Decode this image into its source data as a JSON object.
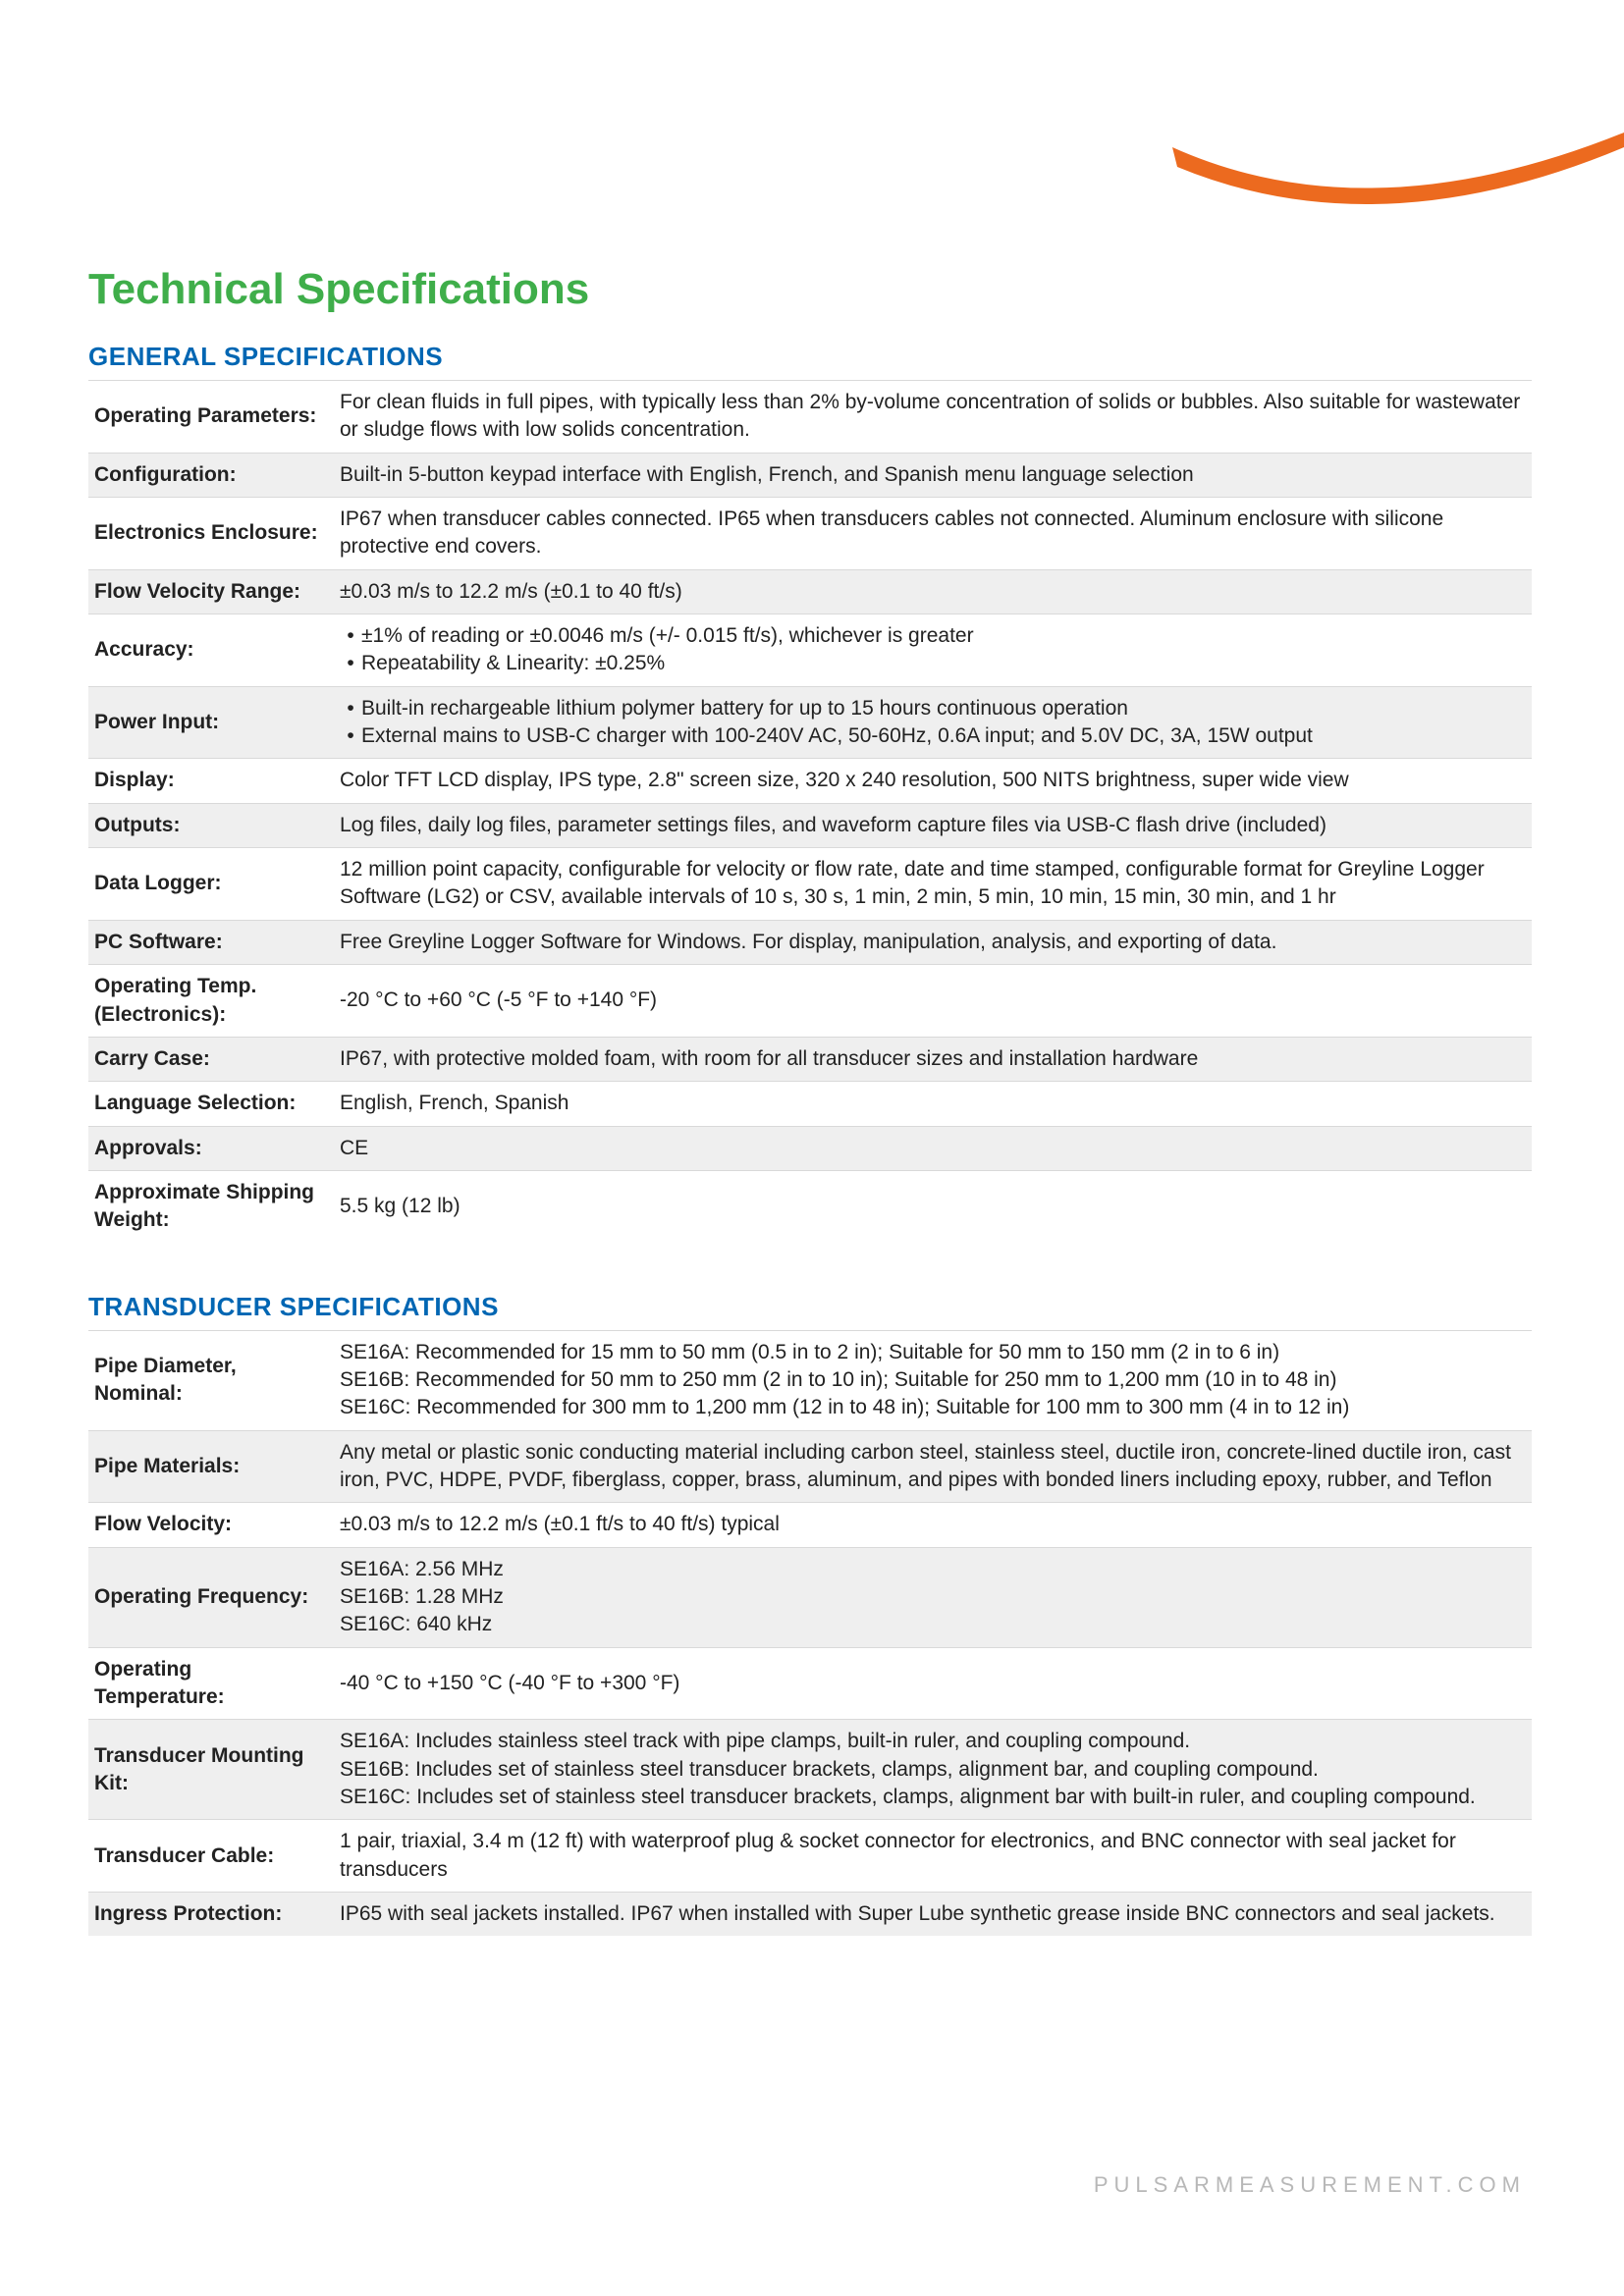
{
  "page_title": "Technical Specifications",
  "colors": {
    "title_green": "#3fae4a",
    "section_blue": "#0066b3",
    "swoosh_orange": "#ec6a1f",
    "row_shade": "#efefef",
    "border": "#d9d9d9",
    "footer_grey": "#b8b8b8"
  },
  "sections": [
    {
      "title": "GENERAL SPECIFICATIONS",
      "rows": [
        {
          "label": "Operating Parameters:",
          "value": "For clean fluids in full pipes, with typically less than 2% by-volume concentration of solids or bubbles. Also suitable for wastewater or sludge flows with low solids concentration.",
          "shade": false
        },
        {
          "label": "Configuration:",
          "value": "Built-in 5-button keypad interface with English, French, and Spanish menu language selection",
          "shade": true
        },
        {
          "label": "Electronics Enclosure:",
          "value": "IP67 when transducer cables connected. IP65 when transducers cables not connected. Aluminum enclosure with silicone protective end covers.",
          "shade": false
        },
        {
          "label": "Flow Velocity Range:",
          "value": "±0.03 m/s to 12.2 m/s (±0.1 to 40 ft/s)",
          "shade": true
        },
        {
          "label": "Accuracy:",
          "bullets": [
            "±1% of reading or ±0.0046 m/s (+/- 0.015 ft/s), whichever is greater",
            "Repeatability & Linearity: ±0.25%"
          ],
          "shade": false
        },
        {
          "label": "Power Input:",
          "bullets": [
            "Built-in rechargeable lithium polymer battery for up to 15 hours continuous operation",
            "External mains to USB-C charger with 100-240V AC, 50-60Hz, 0.6A input; and 5.0V DC, 3A, 15W output"
          ],
          "shade": true
        },
        {
          "label": "Display:",
          "value": "Color TFT LCD display, IPS type, 2.8\" screen size, 320 x 240 resolution, 500 NITS brightness, super wide view",
          "shade": false
        },
        {
          "label": "Outputs:",
          "value": "Log files, daily log files, parameter settings files, and waveform capture files via USB-C flash drive (included)",
          "shade": true
        },
        {
          "label": "Data Logger:",
          "value": "12 million point capacity, configurable for velocity or flow rate, date and time stamped, configurable format for Greyline Logger Software (LG2) or CSV, available intervals of 10 s, 30 s, 1 min, 2 min, 5 min, 10 min, 15 min, 30 min, and 1 hr",
          "shade": false
        },
        {
          "label": "PC Software:",
          "value": "Free Greyline Logger Software for Windows. For display, manipulation, analysis, and exporting of data.",
          "shade": true
        },
        {
          "label": "Operating Temp. (Electronics):",
          "value": "-20 °C to +60 °C (-5 °F to +140 °F)",
          "shade": false
        },
        {
          "label": "Carry Case:",
          "value": "IP67, with protective molded foam, with room for all transducer sizes and installation hardware",
          "shade": true
        },
        {
          "label": "Language Selection:",
          "value": "English, French, Spanish",
          "shade": false
        },
        {
          "label": "Approvals:",
          "value": "CE",
          "shade": true
        },
        {
          "label": "Approximate Shipping Weight:",
          "value": "5.5 kg (12 lb)",
          "shade": false
        }
      ]
    },
    {
      "title": "TRANSDUCER SPECIFICATIONS",
      "rows": [
        {
          "label": "Pipe Diameter, Nominal:",
          "lines": [
            "SE16A: Recommended for 15 mm to 50 mm (0.5 in to 2 in); Suitable for 50 mm to 150 mm (2 in to 6 in)",
            "SE16B: Recommended for 50 mm to 250 mm (2 in to 10 in); Suitable for 250 mm to 1,200 mm (10 in to 48 in)",
            "SE16C: Recommended for 300 mm to 1,200 mm (12 in to 48 in); Suitable for 100 mm to 300 mm (4 in to 12 in)"
          ],
          "shade": false
        },
        {
          "label": "Pipe Materials:",
          "value": "Any metal or plastic sonic conducting material including carbon steel, stainless steel, ductile iron, concrete-lined ductile iron, cast iron, PVC, HDPE, PVDF, fiberglass, copper, brass, aluminum, and pipes with bonded liners including epoxy, rubber, and Teflon",
          "shade": true
        },
        {
          "label": "Flow Velocity:",
          "value": "±0.03 m/s to 12.2 m/s (±0.1 ft/s to 40 ft/s) typical",
          "shade": false
        },
        {
          "label": "Operating Frequency:",
          "lines": [
            "SE16A: 2.56 MHz",
            "SE16B: 1.28 MHz",
            "SE16C: 640 kHz"
          ],
          "shade": true
        },
        {
          "label": "Operating Temperature:",
          "value": "-40 °C to +150 °C (-40 °F to +300 °F)",
          "shade": false
        },
        {
          "label": "Transducer Mounting Kit:",
          "lines": [
            "SE16A: Includes stainless steel track with pipe clamps, built-in ruler, and coupling compound.",
            "SE16B: Includes set of stainless steel transducer brackets, clamps, alignment bar, and coupling compound.",
            "SE16C: Includes set of stainless steel transducer brackets, clamps, alignment bar with built-in ruler, and coupling compound."
          ],
          "shade": true
        },
        {
          "label": "Transducer Cable:",
          "value": "1 pair, triaxial, 3.4 m (12 ft) with waterproof plug & socket connector for electronics, and BNC connector with seal jacket for transducers",
          "shade": false
        },
        {
          "label": "Ingress Protection:",
          "value": "IP65 with seal jackets installed. IP67 when installed with Super Lube synthetic grease inside BNC connectors and seal jackets.",
          "shade": true
        }
      ]
    }
  ],
  "footer": "PULSARMEASUREMENT.COM"
}
